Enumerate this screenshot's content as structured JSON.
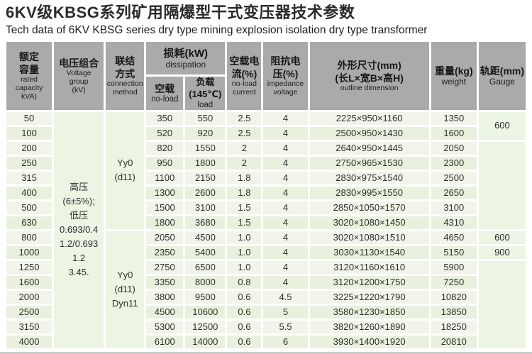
{
  "title": {
    "zh": "6KV级KBSG系列矿用隔爆型干式变压器技术参数",
    "en": "Tech data of 6KV KBSG series dry type mining explosion isolation dry type transformer"
  },
  "colors": {
    "header_bg": "#aaaaaa",
    "row_odd": "#f2f4ea",
    "row_even": "#e9f1de",
    "row_merged": "#ecf4e3",
    "title_text": "#2b2b2b",
    "bottom_rule": "#cccccc"
  },
  "table": {
    "header": {
      "capacity": {
        "zh1": "额定",
        "zh2": "容量",
        "en1": "rated",
        "en2": "capacity",
        "en3": "kVA)"
      },
      "voltage": {
        "zh": "电压组合",
        "en1": "Voltage",
        "en2": "group",
        "en3": "(kV)"
      },
      "connection": {
        "zh1": "联结",
        "zh2": "方式",
        "en1": "connection",
        "en2": "method"
      },
      "dissipation": {
        "zh": "损耗(kW)",
        "en": "dissipation"
      },
      "dissipation_no_load": {
        "zh": "空载",
        "en": "no-load"
      },
      "dissipation_load": {
        "zh": "负载(145℃)",
        "en": "load"
      },
      "no_load_current": {
        "zh1": "空载电",
        "zh2": "流(%)",
        "en1": "no-load",
        "en2": "current"
      },
      "impedance": {
        "zh1": "阻抗电",
        "zh2": "压(%)",
        "en1": "impedance",
        "en2": "voltage"
      },
      "outline": {
        "zh1": "外形尺寸(mm)",
        "zh2": "(长L×宽B×高H)",
        "en": "outline dimension"
      },
      "weight": {
        "zh": "重量(kg)",
        "en": "weight"
      },
      "gauge": {
        "zh": "轨距(mm)",
        "en": "Gauge"
      }
    },
    "voltage_cell": {
      "rowspan": 16,
      "lines": [
        "高压",
        "(6±5%);",
        "低压",
        "0.693/0.4",
        "1.2/0.693",
        "1.2",
        "3.45."
      ]
    },
    "connection_cells": [
      {
        "row": 0,
        "rowspan": 8,
        "lines": [
          "Yy0",
          "(d11)"
        ]
      },
      {
        "row": 8,
        "rowspan": 8,
        "lines": [
          "Yy0",
          "(d11)",
          "Dyn11"
        ]
      }
    ],
    "gauge_cells": [
      {
        "row": 0,
        "rowspan": 2,
        "text": "600"
      },
      {
        "row": 2,
        "rowspan": 6,
        "text": ""
      },
      {
        "row": 8,
        "rowspan": 1,
        "text": "600"
      },
      {
        "row": 9,
        "rowspan": 1,
        "text": "900"
      },
      {
        "row": 10,
        "rowspan": 6,
        "text": ""
      }
    ],
    "rows": [
      {
        "capacity": "50",
        "no_load_loss": "350",
        "load_loss": "550",
        "no_load_current": "2.5",
        "impedance_voltage": "4",
        "outline_dimension": "2225×950×1160",
        "weight": "1350"
      },
      {
        "capacity": "100",
        "no_load_loss": "520",
        "load_loss": "920",
        "no_load_current": "2.5",
        "impedance_voltage": "4",
        "outline_dimension": "2500×950×1430",
        "weight": "1600"
      },
      {
        "capacity": "200",
        "no_load_loss": "820",
        "load_loss": "1550",
        "no_load_current": "2",
        "impedance_voltage": "4",
        "outline_dimension": "2640×950×1445",
        "weight": "2050"
      },
      {
        "capacity": "250",
        "no_load_loss": "950",
        "load_loss": "1800",
        "no_load_current": "2",
        "impedance_voltage": "4",
        "outline_dimension": "2750×965×1530",
        "weight": "2300"
      },
      {
        "capacity": "315",
        "no_load_loss": "1100",
        "load_loss": "2150",
        "no_load_current": "1.8",
        "impedance_voltage": "4",
        "outline_dimension": "2830×975×1540",
        "weight": "2500"
      },
      {
        "capacity": "400",
        "no_load_loss": "1300",
        "load_loss": "2600",
        "no_load_current": "1.8",
        "impedance_voltage": "4",
        "outline_dimension": "2830×995×1550",
        "weight": "2650"
      },
      {
        "capacity": "500",
        "no_load_loss": "1500",
        "load_loss": "3100",
        "no_load_current": "1.5",
        "impedance_voltage": "4",
        "outline_dimension": "2850×1050×1570",
        "weight": "3100"
      },
      {
        "capacity": "630",
        "no_load_loss": "1800",
        "load_loss": "3680",
        "no_load_current": "1.5",
        "impedance_voltage": "4",
        "outline_dimension": "3020×1080×1450",
        "weight": "4310"
      },
      {
        "capacity": "800",
        "no_load_loss": "2050",
        "load_loss": "4500",
        "no_load_current": "1.0",
        "impedance_voltage": "4",
        "outline_dimension": "3020×1080×1510",
        "weight": "4650"
      },
      {
        "capacity": "1000",
        "no_load_loss": "2350",
        "load_loss": "5400",
        "no_load_current": "1.0",
        "impedance_voltage": "4",
        "outline_dimension": "3030×1130×1540",
        "weight": "5150"
      },
      {
        "capacity": "1250",
        "no_load_loss": "2750",
        "load_loss": "6500",
        "no_load_current": "1.0",
        "impedance_voltage": "4",
        "outline_dimension": "3120×1160×1610",
        "weight": "5900"
      },
      {
        "capacity": "1600",
        "no_load_loss": "3350",
        "load_loss": "8000",
        "no_load_current": "0.8",
        "impedance_voltage": "4",
        "outline_dimension": "3120×1200×1750",
        "weight": "7250"
      },
      {
        "capacity": "2000",
        "no_load_loss": "3800",
        "load_loss": "9500",
        "no_load_current": "0.6",
        "impedance_voltage": "4.5",
        "outline_dimension": "3225×1220×1790",
        "weight": "10820"
      },
      {
        "capacity": "2500",
        "no_load_loss": "4500",
        "load_loss": "10600",
        "no_load_current": "0.6",
        "impedance_voltage": "5",
        "outline_dimension": "3580×1230×1850",
        "weight": "13850"
      },
      {
        "capacity": "3150",
        "no_load_loss": "5300",
        "load_loss": "12500",
        "no_load_current": "0.6",
        "impedance_voltage": "5.5",
        "outline_dimension": "3820×1260×1890",
        "weight": "18250"
      },
      {
        "capacity": "4000",
        "no_load_loss": "6100",
        "load_loss": "14000",
        "no_load_current": "0.6",
        "impedance_voltage": "6",
        "outline_dimension": "3930×1400×1920",
        "weight": "20810"
      }
    ]
  }
}
